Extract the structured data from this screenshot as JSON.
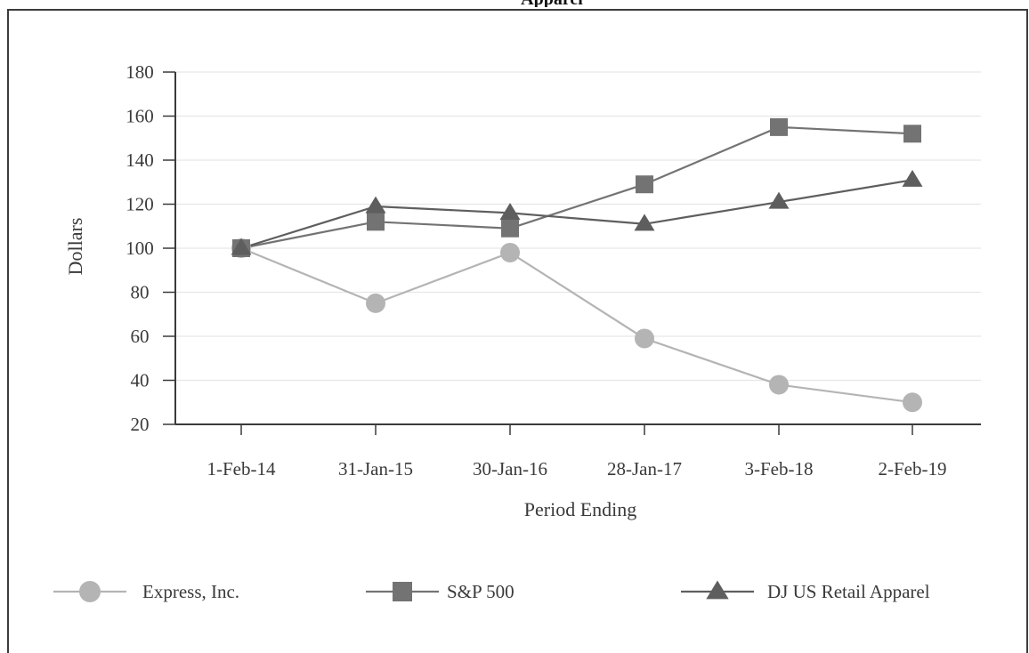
{
  "page_title": "Apparel",
  "chart_data": {
    "type": "line",
    "title": "",
    "xlabel": "Period Ending",
    "ylabel": "Dollars",
    "categories": [
      "1-Feb-14",
      "31-Jan-15",
      "30-Jan-16",
      "28-Jan-17",
      "3-Feb-18",
      "2-Feb-19"
    ],
    "ylim": [
      20,
      180
    ],
    "yticks": [
      20,
      40,
      60,
      80,
      100,
      120,
      140,
      160,
      180
    ],
    "grid": true,
    "legend_position": "bottom",
    "series": [
      {
        "name": "Express, Inc.",
        "marker": "circle",
        "color": "#b4b4b4",
        "values": [
          100,
          75,
          98,
          59,
          38,
          30
        ]
      },
      {
        "name": "S&P 500",
        "marker": "square",
        "color": "#737373",
        "values": [
          100,
          112,
          109,
          129,
          155,
          152
        ]
      },
      {
        "name": "DJ US Retail Apparel",
        "marker": "triangle",
        "color": "#5e5e5e",
        "values": [
          100,
          119,
          116,
          111,
          121,
          131
        ]
      }
    ]
  }
}
